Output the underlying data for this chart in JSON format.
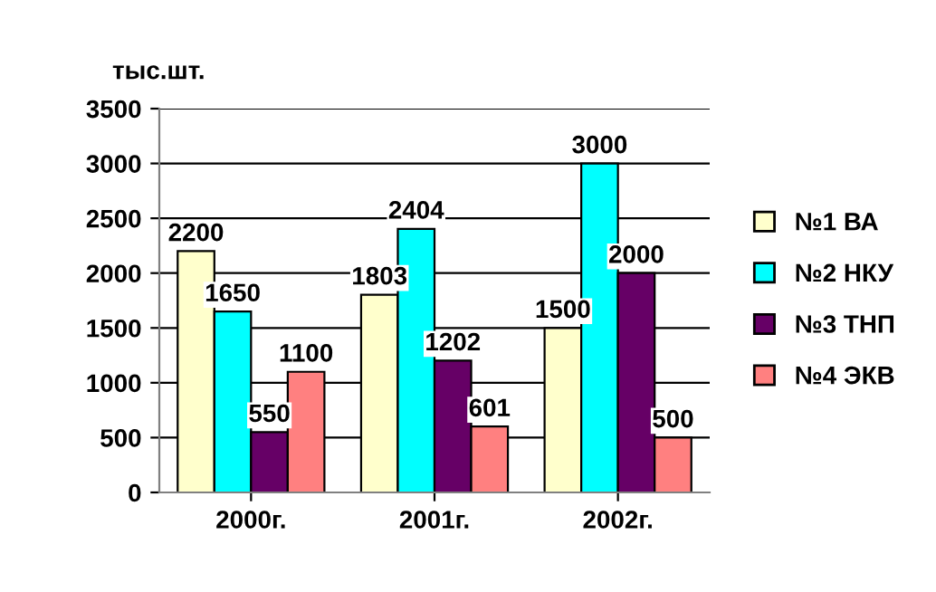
{
  "chart_data": {
    "type": "bar",
    "ylabel": "тыс.шт.",
    "categories": [
      "2000г.",
      "2001г.",
      "2002г."
    ],
    "series": [
      {
        "name": "№1 ВА",
        "color": "#ffffcc",
        "values": [
          2200,
          1803,
          1500
        ]
      },
      {
        "name": "№2 НКУ",
        "color": "#00ffff",
        "values": [
          1650,
          2404,
          3000
        ]
      },
      {
        "name": "№3 ТНП",
        "color": "#660066",
        "values": [
          550,
          1202,
          2000
        ]
      },
      {
        "name": "№4 ЭКВ",
        "color": "#ff8080",
        "values": [
          1100,
          601,
          500
        ]
      }
    ],
    "ylim": [
      0,
      3500
    ],
    "yticks": [
      0,
      500,
      1000,
      1500,
      2000,
      2500,
      3000,
      3500
    ],
    "grid": "y",
    "legend": "right",
    "data_labels": true
  }
}
